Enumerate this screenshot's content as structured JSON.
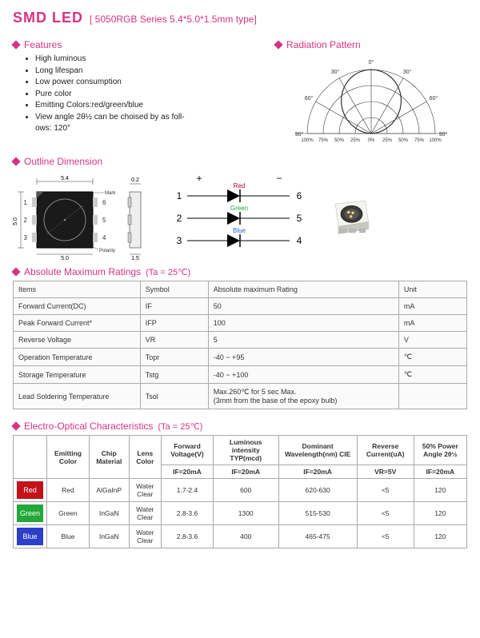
{
  "title": {
    "main": "SMD  LED",
    "sub": "[ 5050RGB Series 5.4*5.0*1.5mm type]"
  },
  "sections": {
    "features": "Features",
    "radiation": "Radiation Pattern",
    "outline": "Outline Dimension",
    "ratings": "Absolute Maximum Ratings",
    "ratings_note": "(Ta = 25℃)",
    "electro": "Electro-Optical Characteristics",
    "electro_note": "(Ta = 25℃)"
  },
  "features_list": [
    "High luminous",
    "Long lifespan",
    "Low power consumption",
    "Pure color",
    "Emitting Colors:red/green/blue",
    "View angle 2θ½ can be choised by as foll-\nows: 120°"
  ],
  "radiation": {
    "angle_labels": [
      "0°",
      "30°",
      "30°",
      "60°",
      "60°",
      "90°",
      "90°"
    ],
    "bottom_labels": [
      "100%",
      "75%",
      "50%",
      "25%",
      "0%",
      "25%",
      "50%",
      "75%",
      "100%"
    ],
    "stroke": "#333333",
    "bg": "#ffffff"
  },
  "outline": {
    "dims": {
      "w": "5.4",
      "h": "5.0",
      "pad_w": "5.0",
      "thick": "0.2",
      "thin": "1.5"
    },
    "notes": {
      "mark_black": "Mark Black",
      "polarity": "Polarity mark"
    },
    "pins": {
      "plus": "+",
      "minus": "−",
      "colors": [
        "Red",
        "Green",
        "Blue"
      ],
      "left": [
        "1",
        "2",
        "3"
      ],
      "right": [
        "6",
        "5",
        "4"
      ],
      "led_color": {
        "red": "#b00020",
        "green": "#1aa64b",
        "blue": "#1e62d6"
      }
    }
  },
  "ratings_table": {
    "headers": [
      "Items",
      "Symbol",
      "Absolute maximum Rating",
      "Unit"
    ],
    "rows": [
      [
        "Forward Current(DC)",
        "IF",
        "50",
        "mA"
      ],
      [
        "Peak Forward Current*",
        "IFP",
        "100",
        "mA"
      ],
      [
        "Reverse Voltage",
        "VR",
        "5",
        "V"
      ],
      [
        "Operation Temperature",
        "Topr",
        "-40 ~ +95",
        "℃"
      ],
      [
        "Storage Temperature",
        "Tstg",
        "-40 ~ +100",
        "℃"
      ],
      [
        "Lead   Soldering Temperature",
        "Tsol",
        "Max.260℃ for 5 sec Max.\n(3mm from the base of the epoxy bulb)",
        ""
      ]
    ]
  },
  "electro_table": {
    "headers_top": [
      "Emitting Color",
      "Chip Material",
      "Lens Color",
      "Forward Voltage(V)",
      "Luminous intensity TYP(mcd)",
      "Dominant Wavelength(nm) CIE",
      "Reverse Current(uA)",
      "50% Power Angle 2θ½"
    ],
    "headers_sub": [
      "",
      "",
      "",
      "IF=20mA",
      "IF=20mA",
      "IF=20mA",
      "VR=5V",
      "IF=20mA"
    ],
    "rows": [
      {
        "color_label": "Red",
        "color_hex": "#c4121a",
        "chip": "AlGaInP",
        "lens": "Water Clear",
        "vf": "1.7-2.4",
        "iv": "600",
        "wl": "620-630",
        "ir": "<5",
        "angle": "120"
      },
      {
        "color_label": "Green",
        "color_hex": "#22a838",
        "chip": "InGaN",
        "lens": "Water Clear",
        "vf": "2.8-3.6",
        "iv": "1300",
        "wl": "515-530",
        "ir": "<5",
        "angle": "120"
      },
      {
        "color_label": "Blue",
        "color_hex": "#2b3fc8",
        "chip": "InGaN",
        "lens": "Water Clear",
        "vf": "2.8-3.6",
        "iv": "400",
        "wl": "465-475",
        "ir": "<5",
        "angle": "120"
      }
    ]
  },
  "colors": {
    "accent": "#d63384",
    "border": "#aaaaaa",
    "text": "#333333"
  }
}
